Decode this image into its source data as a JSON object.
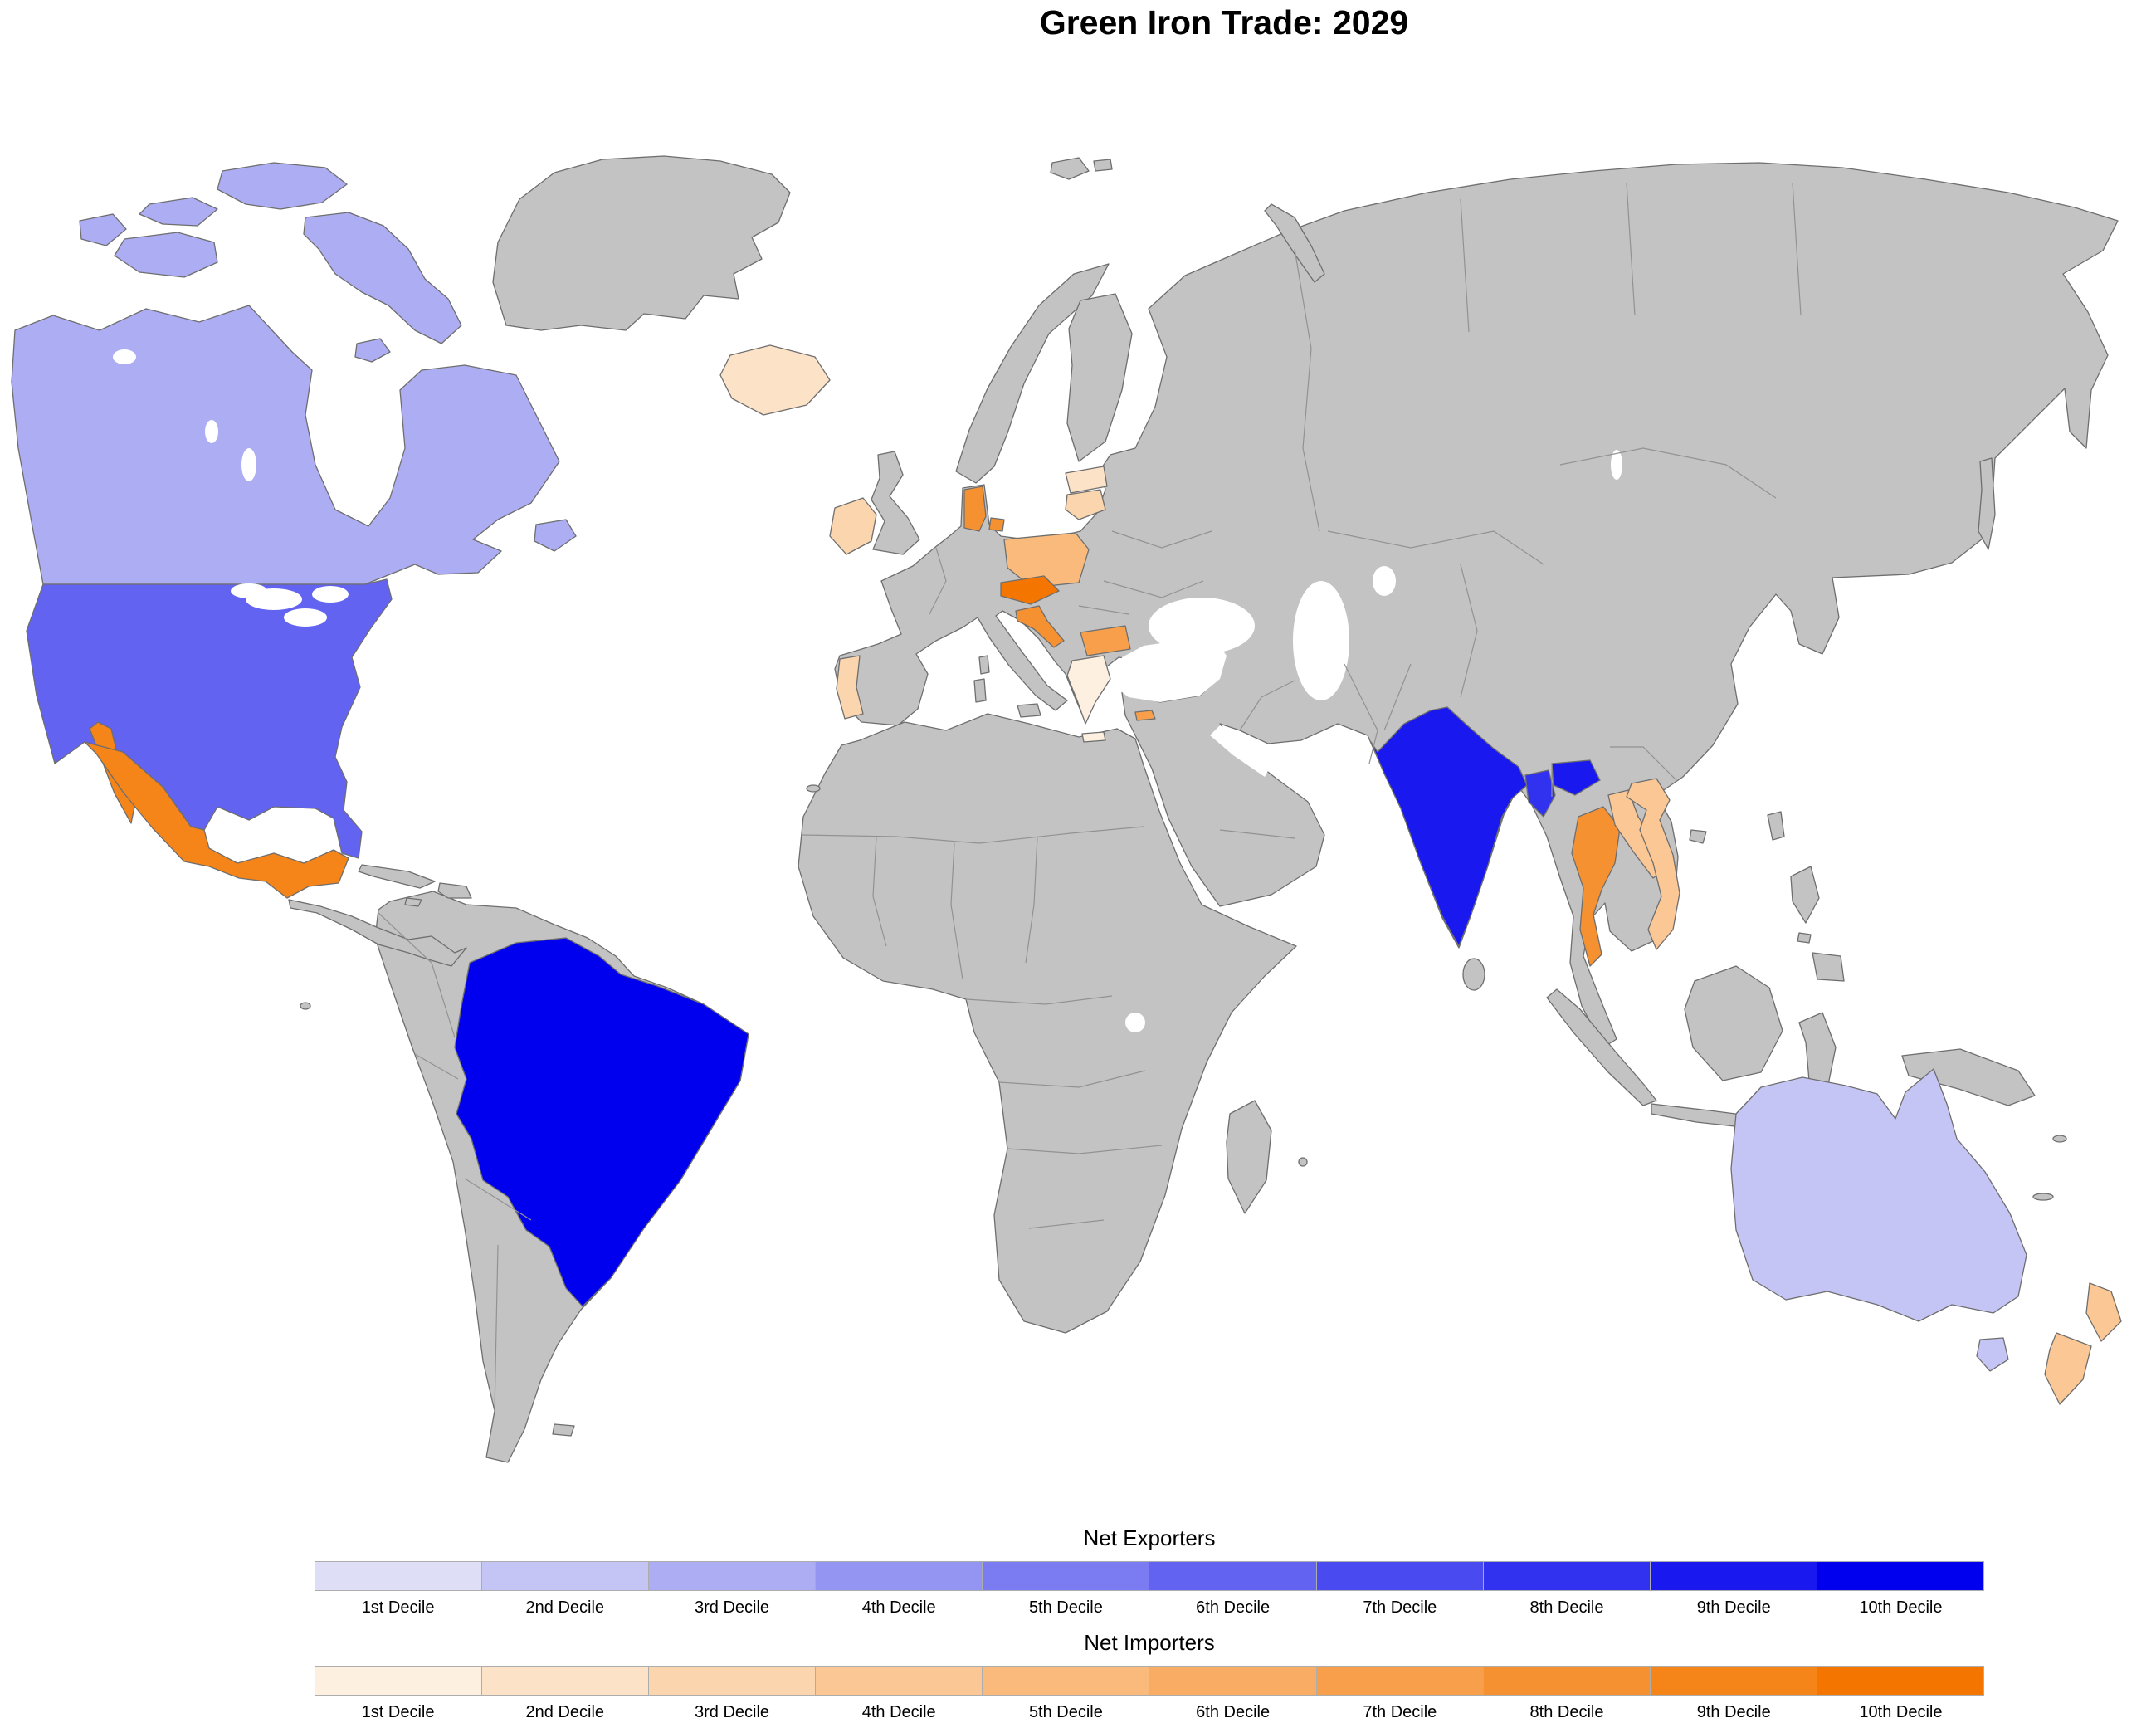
{
  "title": "Green Iron Trade: 2029",
  "legend": {
    "exporters": {
      "title": "Net Exporters",
      "labels": [
        "1st Decile",
        "2nd Decile",
        "3rd Decile",
        "4th Decile",
        "5th Decile",
        "6th Decile",
        "7th Decile",
        "8th Decile",
        "9th Decile",
        "10th Decile"
      ],
      "colors": [
        "#dedef6",
        "#c5c5f5",
        "#adadf4",
        "#9494f3",
        "#7b7bf2",
        "#6363f2",
        "#4a4af1",
        "#3131f0",
        "#1919ef",
        "#0000ee"
      ]
    },
    "importers": {
      "title": "Net Importers",
      "labels": [
        "1st Decile",
        "2nd Decile",
        "3rd Decile",
        "4th Decile",
        "5th Decile",
        "6th Decile",
        "7th Decile",
        "8th Decile",
        "9th Decile",
        "10th Decile"
      ],
      "colors": [
        "#fdf0e0",
        "#fce2c7",
        "#fbd5ae",
        "#fac795",
        "#f9ba7c",
        "#f8ac64",
        "#f79f4b",
        "#f69132",
        "#f58419",
        "#f47600"
      ]
    }
  },
  "map": {
    "no_data_color": "#c3c3c3",
    "border_color": "#6e6e6e",
    "ocean_color": "#ffffff",
    "countries": [
      {
        "name": "Brazil",
        "group": "exporter",
        "decile": 10
      },
      {
        "name": "India",
        "group": "exporter",
        "decile": 9
      },
      {
        "name": "Bangladesh",
        "group": "exporter",
        "decile": 8
      },
      {
        "name": "United States",
        "group": "exporter",
        "decile": 6
      },
      {
        "name": "Canada",
        "group": "exporter",
        "decile": 3
      },
      {
        "name": "Australia",
        "group": "exporter",
        "decile": 2
      },
      {
        "name": "Mexico",
        "group": "importer",
        "decile": 9
      },
      {
        "name": "Czechia",
        "group": "importer",
        "decile": 10
      },
      {
        "name": "Denmark",
        "group": "importer",
        "decile": 8
      },
      {
        "name": "Croatia",
        "group": "importer",
        "decile": 8
      },
      {
        "name": "Thailand",
        "group": "importer",
        "decile": 8
      },
      {
        "name": "Bulgaria",
        "group": "importer",
        "decile": 7
      },
      {
        "name": "Cyprus",
        "group": "importer",
        "decile": 7
      },
      {
        "name": "Poland",
        "group": "importer",
        "decile": 5
      },
      {
        "name": "Vietnam",
        "group": "importer",
        "decile": 4
      },
      {
        "name": "Laos",
        "group": "importer",
        "decile": 4
      },
      {
        "name": "New Zealand",
        "group": "importer",
        "decile": 4
      },
      {
        "name": "Ireland",
        "group": "importer",
        "decile": 3
      },
      {
        "name": "Portugal",
        "group": "importer",
        "decile": 3
      },
      {
        "name": "Lithuania",
        "group": "importer",
        "decile": 3
      },
      {
        "name": "Latvia",
        "group": "importer",
        "decile": 2
      },
      {
        "name": "Iceland",
        "group": "importer",
        "decile": 2
      },
      {
        "name": "Greece",
        "group": "importer",
        "decile": 1
      }
    ]
  }
}
